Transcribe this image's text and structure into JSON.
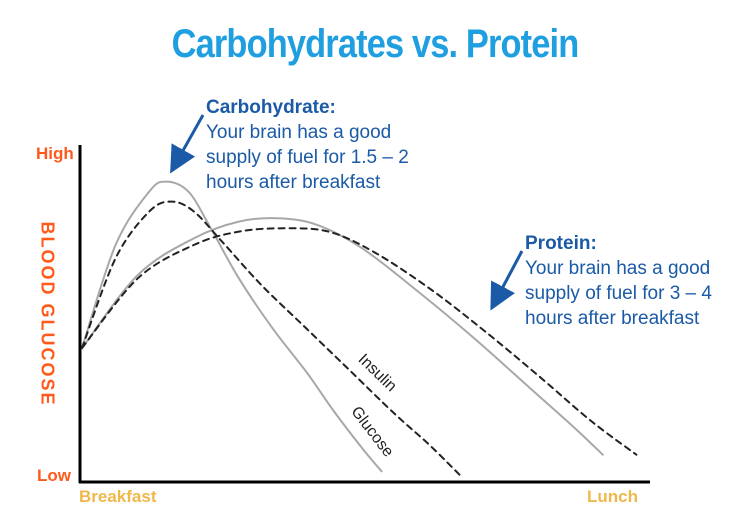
{
  "title": "Carbohydrates vs. Protein",
  "annotations": {
    "carb": {
      "head": "Carbohydrate:",
      "body": "Your brain has a good\nsupply of fuel for 1.5 – 2\nhours after breakfast"
    },
    "protein": {
      "head": "Protein:",
      "body": "Your brain has a good\nsupply of fuel for 3 – 4\nhours after breakfast"
    }
  },
  "colors": {
    "title": "#1f9fe0",
    "annotation": "#1a5aa6",
    "y_labels": "#ff5a1a",
    "x_labels": "#f0b84a",
    "curves": "#a8a8a8",
    "dashed": "#222222"
  },
  "chart_data": {
    "type": "line",
    "ylabel": "BLOOD GLUCOSE",
    "y_ticks": {
      "high": "High",
      "low": "Low"
    },
    "x_ticks": {
      "start": "Breakfast",
      "end": "Lunch"
    },
    "xlim": [
      0,
      1
    ],
    "ylim": [
      0,
      1
    ],
    "grid": false,
    "legend": "none",
    "series": [
      {
        "id": "carb_glucose",
        "name": "Glucose",
        "style": "solid",
        "color": "#a8a8a8",
        "x": [
          0.0,
          0.06,
          0.12,
          0.15,
          0.19,
          0.23,
          0.28,
          0.34,
          0.4,
          0.45,
          0.5,
          0.535
        ],
        "y": [
          0.39,
          0.7,
          0.86,
          0.89,
          0.86,
          0.75,
          0.6,
          0.45,
          0.32,
          0.2,
          0.09,
          0.02
        ]
      },
      {
        "id": "carb_insulin",
        "name": "Insulin",
        "style": "dashed",
        "color": "#222222",
        "x": [
          0.0,
          0.06,
          0.12,
          0.16,
          0.2,
          0.25,
          0.32,
          0.4,
          0.48,
          0.56,
          0.62,
          0.68
        ],
        "y": [
          0.39,
          0.66,
          0.8,
          0.83,
          0.8,
          0.71,
          0.58,
          0.45,
          0.32,
          0.19,
          0.1,
          0.0
        ]
      },
      {
        "id": "protein_glucose",
        "style": "solid",
        "color": "#a8a8a8",
        "x": [
          0.0,
          0.1,
          0.2,
          0.28,
          0.35,
          0.42,
          0.5,
          0.6,
          0.7,
          0.8,
          0.88,
          0.93
        ],
        "y": [
          0.39,
          0.61,
          0.72,
          0.77,
          0.78,
          0.76,
          0.69,
          0.56,
          0.42,
          0.27,
          0.15,
          0.07
        ]
      },
      {
        "id": "protein_insulin",
        "style": "dashed",
        "color": "#222222",
        "x": [
          0.0,
          0.1,
          0.2,
          0.28,
          0.36,
          0.44,
          0.52,
          0.62,
          0.72,
          0.82,
          0.91,
          0.99
        ],
        "y": [
          0.39,
          0.6,
          0.7,
          0.74,
          0.75,
          0.74,
          0.68,
          0.57,
          0.44,
          0.3,
          0.17,
          0.07
        ]
      }
    ],
    "curve_labels": [
      {
        "text": "Insulin",
        "series": "carb_insulin",
        "at": 0.5
      },
      {
        "text": "Glucose",
        "series": "carb_glucose",
        "at": 0.49
      }
    ]
  }
}
